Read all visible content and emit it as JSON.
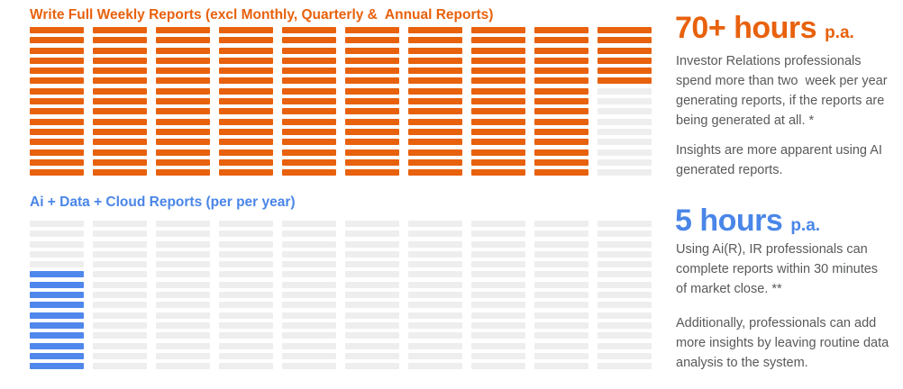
{
  "colors": {
    "orange": "#E8610D",
    "blue_bar": "#4F87EC",
    "blue_heading": "#4A86E8",
    "empty_gray": "#EEEEEE",
    "body_text": "#58595B",
    "background": "#FFFFFF"
  },
  "chart_data": [
    {
      "type": "bar",
      "subtype": "waffle-stripe-grid",
      "title": "Write Full Weekly Reports (excl Monthly, Quarterly &  Annual Reports)",
      "title_color": "#E8610D",
      "columns": 10,
      "rows": 15,
      "cells_total": 150,
      "cells_filled": 141,
      "fill_from": "top",
      "column_fill": [
        15,
        15,
        15,
        15,
        15,
        15,
        15,
        15,
        15,
        6
      ],
      "fill_color": "#E8610D",
      "empty_color": "#EEEEEE",
      "legend": "none",
      "grid": "off",
      "associated_value": "70+ hours p.a."
    },
    {
      "type": "bar",
      "subtype": "waffle-stripe-grid",
      "title": "Ai + Data + Cloud Reports (per per year)",
      "title_color": "#4A86E8",
      "columns": 10,
      "rows": 15,
      "cells_total": 150,
      "cells_filled": 10,
      "fill_from": "bottom",
      "column_fill": [
        10,
        0,
        0,
        0,
        0,
        0,
        0,
        0,
        0,
        0
      ],
      "fill_color": "#4F87EC",
      "empty_color": "#EEEEEE",
      "legend": "none",
      "grid": "off",
      "associated_value": "5 hours p.a."
    }
  ],
  "right_panel": {
    "stat1": {
      "value": "70+ hours",
      "suffix": "p.a.",
      "para1": "Investor Relations professionals spend more than two  week per year generating reports, if the reports are being generated at all. *",
      "para2": "Insights are more apparent using AI generated reports."
    },
    "stat2": {
      "value": "5 hours",
      "suffix": "p.a.",
      "para1": "Using Ai(R), IR professionals can complete reports within 30 minutes of market close. **",
      "para2": "Additionally, professionals can add more insights by leaving routine data analysis to the system."
    }
  }
}
